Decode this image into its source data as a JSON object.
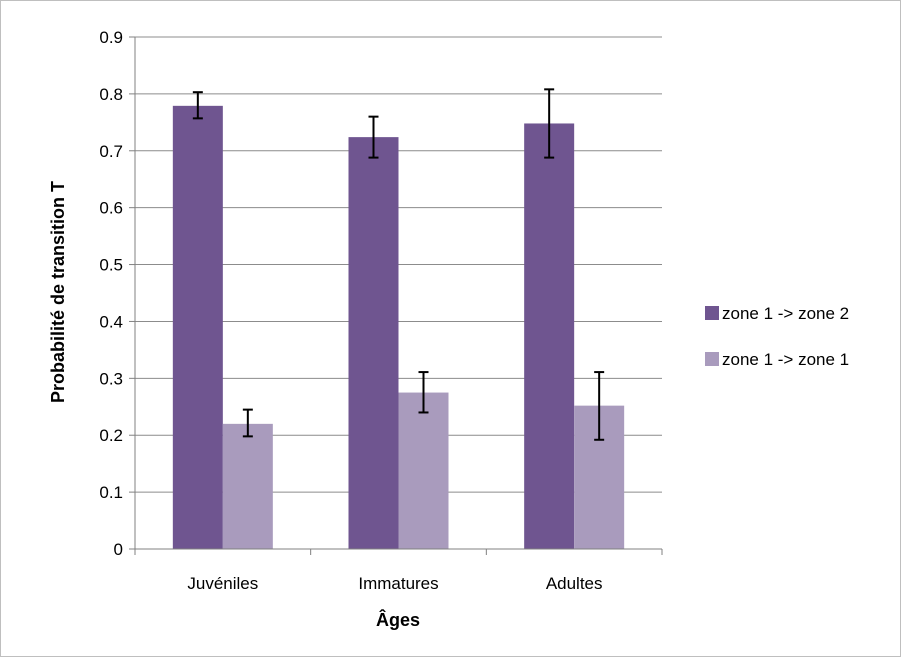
{
  "chart_data": {
    "type": "bar",
    "title": "",
    "xlabel": "Âges",
    "ylabel": "Probabilité de transition T",
    "categories": [
      "Juvéniles",
      "Immatures",
      "Adultes"
    ],
    "ylim": [
      0,
      0.9
    ],
    "yticks": [
      "0",
      "0.1",
      "0.2",
      "0.3",
      "0.4",
      "0.5",
      "0.6",
      "0.7",
      "0.8",
      "0.9"
    ],
    "grid": true,
    "legend_position": "right",
    "series": [
      {
        "name": "zone 1 -> zone 2",
        "color": "#6f5590",
        "values": [
          0.779,
          0.724,
          0.748
        ],
        "error_low": [
          0.757,
          0.688,
          0.688
        ],
        "error_high": [
          0.803,
          0.76,
          0.808
        ]
      },
      {
        "name": "zone 1 -> zone 1",
        "color": "#a99bbd",
        "values": [
          0.22,
          0.275,
          0.252
        ],
        "error_low": [
          0.198,
          0.24,
          0.192
        ],
        "error_high": [
          0.245,
          0.311,
          0.311
        ]
      }
    ]
  }
}
